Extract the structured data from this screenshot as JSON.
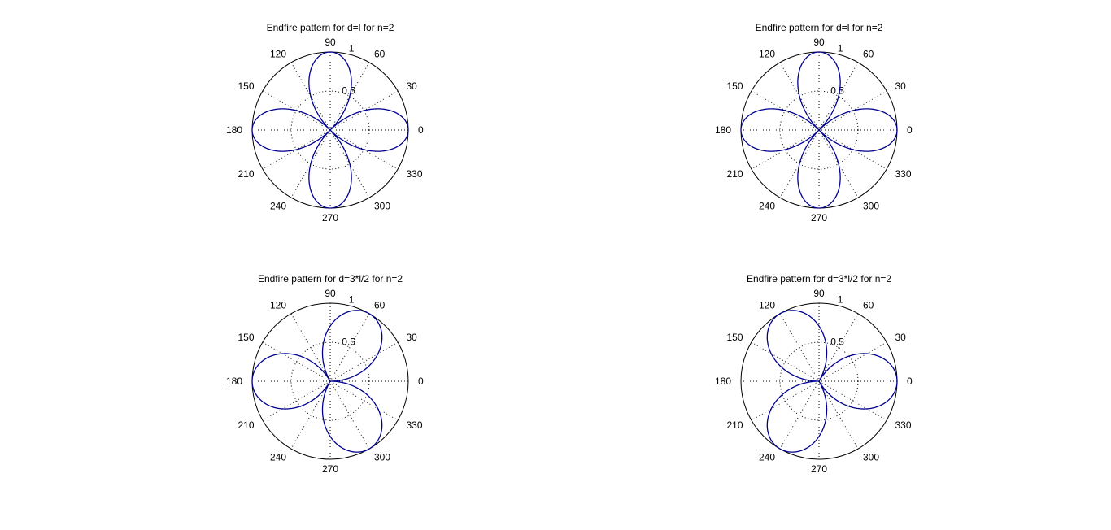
{
  "chart_data": [
    {
      "type": "polar",
      "title": "Endfire pattern for d=l for n=2",
      "angle_ticks": [
        "0",
        "30",
        "60",
        "90",
        "120",
        "150",
        "180",
        "210",
        "240",
        "270",
        "300",
        "330"
      ],
      "radial_ticks": [
        {
          "value": 0.5,
          "label": "0.5"
        },
        {
          "value": 1,
          "label": "1"
        }
      ],
      "rlim": [
        0,
        1
      ],
      "grid": true,
      "series": [
        {
          "color": "#00008f",
          "expr": "abs(cos(2*theta))",
          "lobe_axes_deg": [
            0,
            90,
            180,
            270
          ],
          "peak": 1
        }
      ]
    },
    {
      "type": "polar",
      "title": "Endfire pattern for d=l for n=2",
      "angle_ticks": [
        "0",
        "30",
        "60",
        "90",
        "120",
        "150",
        "180",
        "210",
        "240",
        "270",
        "300",
        "330"
      ],
      "radial_ticks": [
        {
          "value": 0.5,
          "label": "0.5"
        },
        {
          "value": 1,
          "label": "1"
        }
      ],
      "rlim": [
        0,
        1
      ],
      "grid": true,
      "series": [
        {
          "color": "#00008f",
          "expr": "abs(cos(2*theta))",
          "lobe_axes_deg": [
            0,
            90,
            180,
            270
          ],
          "peak": 1
        }
      ]
    },
    {
      "type": "polar",
      "title": "Endfire pattern for d=3*l/2 for n=2",
      "angle_ticks": [
        "0",
        "30",
        "60",
        "90",
        "120",
        "150",
        "180",
        "210",
        "240",
        "270",
        "300",
        "330"
      ],
      "radial_ticks": [
        {
          "value": 0.5,
          "label": "0.5"
        },
        {
          "value": 1,
          "label": "1"
        }
      ],
      "rlim": [
        0,
        1
      ],
      "grid": true,
      "series": [
        {
          "color": "#00008f",
          "expr": "abs(cos(1.5*(theta-pi)))",
          "lobe_axes_deg": [
            180,
            60,
            300
          ],
          "peak": 1
        }
      ]
    },
    {
      "type": "polar",
      "title": "Endfire pattern for d=3*l/2 for n=2",
      "angle_ticks": [
        "0",
        "30",
        "60",
        "90",
        "120",
        "150",
        "180",
        "210",
        "240",
        "270",
        "300",
        "330"
      ],
      "radial_ticks": [
        {
          "value": 0.5,
          "label": "0.5"
        },
        {
          "value": 1,
          "label": "1"
        }
      ],
      "rlim": [
        0,
        1
      ],
      "grid": true,
      "series": [
        {
          "color": "#00008f",
          "expr": "abs(cos(1.5*theta))",
          "lobe_axes_deg": [
            0,
            120,
            240
          ],
          "peak": 1
        }
      ]
    }
  ]
}
